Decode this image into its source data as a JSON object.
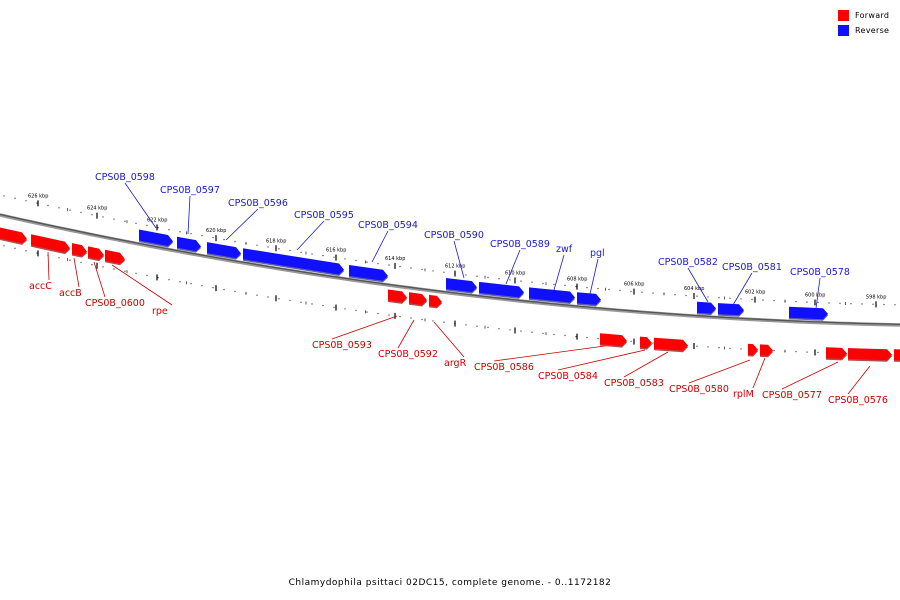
{
  "colors": {
    "forward": "#ff0000",
    "reverse": "#1010ff",
    "forward_label": "#cc0000",
    "reverse_label": "#1a1acc",
    "backbone": "#888888"
  },
  "legend": {
    "forward_label": "Forward",
    "reverse_label": "Reverse"
  },
  "caption": "Chlamydophila psittaci 02DC15, complete genome. - 0..1172182",
  "ticks": [
    {
      "kbp": 626,
      "label": "626 kbp"
    },
    {
      "kbp": 624,
      "label": "624 kbp"
    },
    {
      "kbp": 622,
      "label": "622 kbp"
    },
    {
      "kbp": 620,
      "label": "620 kbp"
    },
    {
      "kbp": 618,
      "label": "618 kbp"
    },
    {
      "kbp": 616,
      "label": "616 kbp"
    },
    {
      "kbp": 614,
      "label": "614 kbp"
    },
    {
      "kbp": 612,
      "label": "612 kbp"
    },
    {
      "kbp": 610,
      "label": "610 kbp"
    },
    {
      "kbp": 608,
      "label": "608 kbp"
    },
    {
      "kbp": 606,
      "label": "606 kbp"
    },
    {
      "kbp": 604,
      "label": "604 kbp"
    },
    {
      "kbp": 602,
      "label": "602 kbp"
    },
    {
      "kbp": 600,
      "label": "600 kbp"
    },
    {
      "kbp": 598,
      "label": "598 kbp"
    }
  ],
  "genes": {
    "reverse": [
      {
        "name": "CPS0B_0598"
      },
      {
        "name": "CPS0B_0597"
      },
      {
        "name": "CPS0B_0596"
      },
      {
        "name": "CPS0B_0595"
      },
      {
        "name": "CPS0B_0594"
      },
      {
        "name": "CPS0B_0590"
      },
      {
        "name": "CPS0B_0589"
      },
      {
        "name": "zwf"
      },
      {
        "name": "pgl"
      },
      {
        "name": "CPS0B_0582"
      },
      {
        "name": "CPS0B_0581"
      },
      {
        "name": "CPS0B_0578"
      }
    ],
    "forward": [
      {
        "name": "accC"
      },
      {
        "name": "accB"
      },
      {
        "name": "CPS0B_0600"
      },
      {
        "name": "rpe"
      },
      {
        "name": "CPS0B_0593"
      },
      {
        "name": "CPS0B_0592"
      },
      {
        "name": "argR"
      },
      {
        "name": "CPS0B_0586"
      },
      {
        "name": "CPS0B_0584"
      },
      {
        "name": "CPS0B_0583"
      },
      {
        "name": "CPS0B_0580"
      },
      {
        "name": "rplM"
      },
      {
        "name": "CPS0B_0577"
      },
      {
        "name": "CPS0B_0576"
      }
    ]
  }
}
